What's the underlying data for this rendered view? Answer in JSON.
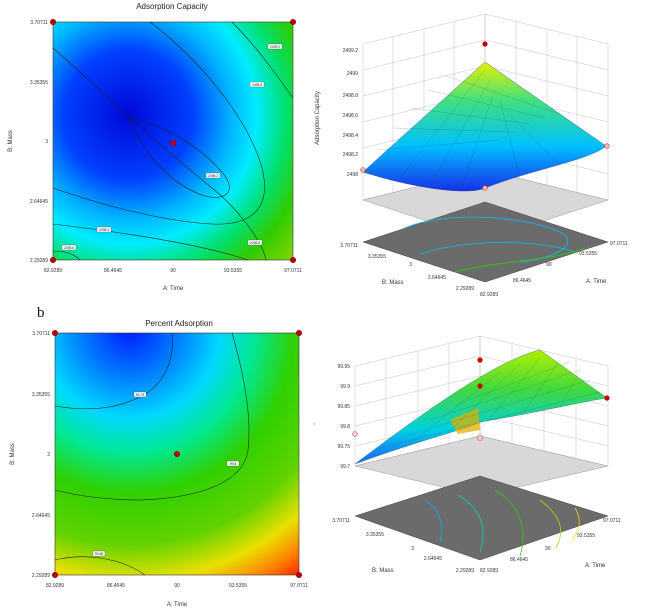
{
  "panel_label_b": "b",
  "stray_mark": ",",
  "colors": {
    "low": "#0010ff",
    "mid": "#00d8ff",
    "high": "#30d000",
    "top": "#f0e000",
    "hot": "#ff2000",
    "contour": "#222222",
    "design_point": "#c00000",
    "floor": "#6b6b6b"
  },
  "chart_data": [
    {
      "type": "contour",
      "title": "Adsorption Capacity",
      "xlabel": "A: Time",
      "ylabel": "B: Mass",
      "xlim": [
        82.9289,
        97.0711
      ],
      "ylim": [
        2.29289,
        3.70711
      ],
      "x_ticks": [
        "82.9289",
        "86.4645",
        "90",
        "93.5355",
        "97.0711"
      ],
      "y_ticks": [
        "2.29289",
        "2.64645",
        "3",
        "3.35355",
        "3.70711"
      ],
      "contour_levels": [
        "2498.2",
        "2498.4",
        "2498.6",
        "2498.8",
        "2498.8",
        "2499.2"
      ],
      "design_points": [
        [
          82.9289,
          2.29289
        ],
        [
          97.0711,
          2.29289
        ],
        [
          82.9289,
          3.70711
        ],
        [
          97.0711,
          3.70711
        ],
        [
          90,
          3
        ]
      ]
    },
    {
      "type": "surface3d",
      "zlabel": "Adsorption Capacity",
      "xlabel": "A: Time",
      "ylabel": "B: Mass",
      "z_ticks": [
        "2498",
        "2498.2",
        "2498.4",
        "2498.6",
        "2498.8",
        "2499",
        "2499.2"
      ],
      "x_ticks": [
        "82.9289",
        "86.4645",
        "90",
        "93.5355",
        "97.0711"
      ],
      "y_ticks": [
        "2.29289",
        "2.64645",
        "3",
        "3.35355",
        "3.70711"
      ],
      "zlim": [
        2498,
        2499.2
      ]
    },
    {
      "type": "contour",
      "title": "Percent Adsorption",
      "xlabel": "A: Time",
      "ylabel": "B: Mass",
      "xlim": [
        82.9289,
        97.0711
      ],
      "ylim": [
        2.29289,
        3.70711
      ],
      "x_ticks": [
        "82.9289",
        "86.4645",
        "90",
        "93.5355",
        "97.0711"
      ],
      "y_ticks": [
        "2.29289",
        "2.64645",
        "3",
        "3.35355",
        "3.70711"
      ],
      "contour_levels": [
        "99.75",
        "99.8",
        "99.85"
      ],
      "design_points": [
        [
          82.9289,
          2.29289
        ],
        [
          97.0711,
          2.29289
        ],
        [
          82.9289,
          3.70711
        ],
        [
          97.0711,
          3.70711
        ],
        [
          90,
          3
        ]
      ]
    },
    {
      "type": "surface3d",
      "zlabel": "",
      "xlabel": "A: Time",
      "ylabel": "B: Mass",
      "z_ticks": [
        "99.7",
        "99.75",
        "99.8",
        "99.85",
        "99.9",
        "99.95"
      ],
      "x_ticks": [
        "82.9289",
        "86.4645",
        "90",
        "93.5355",
        "97.0711"
      ],
      "y_ticks": [
        "2.29289",
        "2.64645",
        "3",
        "3.35355",
        "3.70711"
      ],
      "zlim": [
        99.7,
        99.95
      ]
    }
  ]
}
